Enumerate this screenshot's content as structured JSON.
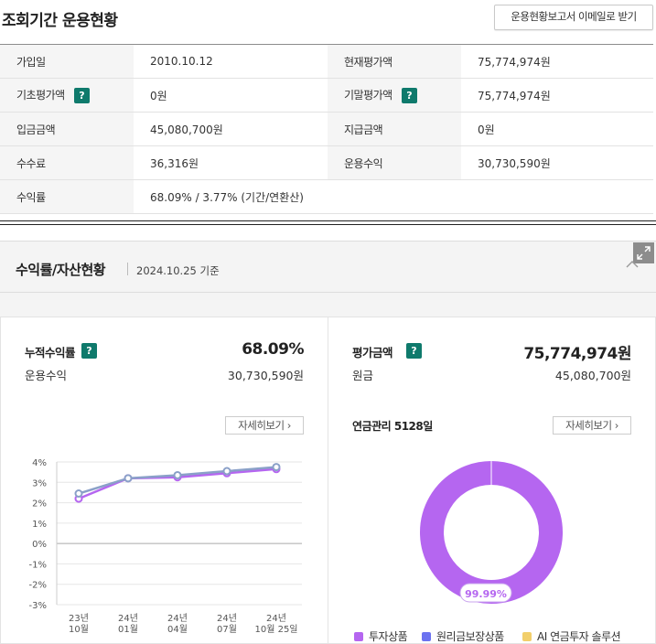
{
  "header": {
    "title": "조회기간 운용현황",
    "email_button": "운용현황보고서 이메일로 받기"
  },
  "info_table": [
    [
      {
        "label": "가입일",
        "help": false,
        "value": "2010.10.12"
      },
      {
        "label": "현재평가액",
        "help": false,
        "value": "75,774,974원"
      }
    ],
    [
      {
        "label": "기초평가액",
        "help": true,
        "value": "0원"
      },
      {
        "label": "기말평가액",
        "help": true,
        "value": "75,774,974원"
      }
    ],
    [
      {
        "label": "입금금액",
        "help": false,
        "value": "45,080,700원"
      },
      {
        "label": "지급금액",
        "help": false,
        "value": "0원"
      }
    ],
    [
      {
        "label": "수수료",
        "help": false,
        "value": "36,316원"
      },
      {
        "label": "운용수익",
        "help": false,
        "value": "30,730,590원"
      }
    ],
    [
      {
        "label": "수익률",
        "help": false,
        "value": "68.09% / 3.77% (기간/연환산)"
      }
    ]
  ],
  "help_icon_text": "?",
  "section": {
    "title": "수익률/자산현황",
    "date": "2024.10.25 기준"
  },
  "left_panel": {
    "cum_return_label": "누적수익률",
    "cum_return_value": "68.09%",
    "profit_label": "운용수익",
    "profit_value": "30,730,590원",
    "detail_button": "자세히보기"
  },
  "right_panel": {
    "eval_label": "평가금액",
    "eval_value": "75,774,974원",
    "principal_label": "원금",
    "principal_value": "45,080,700원",
    "pension_label": "연금관리 5128일",
    "detail_button": "자세히보기",
    "donut_label": "99.99%",
    "legend": [
      {
        "name": "투자상품",
        "color": "#b566f0"
      },
      {
        "name": "원리금보장상품",
        "color": "#6b72f0"
      },
      {
        "name": "AI 연금투자 솔루션",
        "color": "#f2cf6b"
      }
    ]
  },
  "colors": {
    "accent": "#0f7a6c",
    "line_a": "#b566f0",
    "line_b": "#8aa0c8"
  },
  "chart_data": [
    {
      "type": "line",
      "categories": [
        "23년 10월",
        "24년 01월",
        "24년 04월",
        "24년 07월",
        "24년 10월 25일"
      ],
      "y_tick_labels": [
        "4%",
        "3%",
        "2%",
        "1%",
        "0%",
        "-1%",
        "-2%",
        "-3%"
      ],
      "ylim": [
        -3,
        4
      ],
      "grid": true,
      "series": [
        {
          "color": "#b566f0",
          "values": [
            2.2,
            3.2,
            3.25,
            3.45,
            3.65
          ]
        },
        {
          "color": "#8aa0c8",
          "values": [
            2.45,
            3.2,
            3.35,
            3.55,
            3.75
          ]
        }
      ]
    },
    {
      "type": "pie",
      "labels": [
        "투자상품",
        "원리금보장상품",
        "AI 연금투자 솔루션"
      ],
      "values": [
        99.99,
        0.01,
        0
      ],
      "data_label": "99.99%"
    }
  ]
}
